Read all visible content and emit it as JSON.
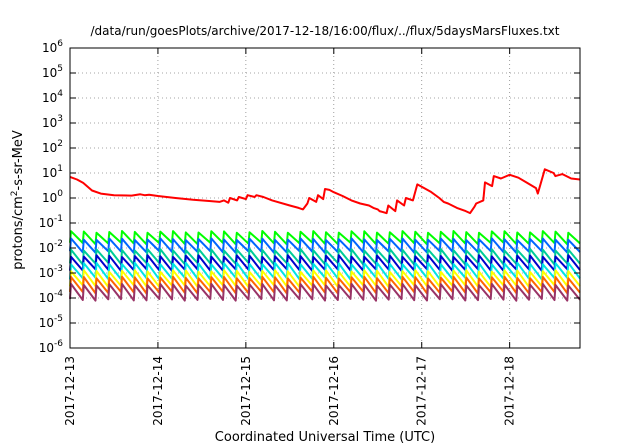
{
  "chart_data": {
    "type": "line",
    "title": "/data/run/goesPlots/archive/2017-12-18/16:00/flux/../flux/5daysMarsFluxes.txt",
    "xlabel": "Coordinated Universal Time (UTC)",
    "ylabel_base": "protons/cm",
    "ylabel_sup": "2",
    "ylabel_rest": "-s-sr-MeV",
    "y_scale": "log",
    "ylim": [
      1e-06,
      1000000.0
    ],
    "xlim": [
      0,
      5.8
    ],
    "grid": true,
    "grid_style": "dotted",
    "y_ticks": [
      {
        "base": "10",
        "exp": "-6",
        "value": -6
      },
      {
        "base": "10",
        "exp": "-5",
        "value": -5
      },
      {
        "base": "10",
        "exp": "-4",
        "value": -4
      },
      {
        "base": "10",
        "exp": "-3",
        "value": -3
      },
      {
        "base": "10",
        "exp": "-2",
        "value": -2
      },
      {
        "base": "10",
        "exp": "-1",
        "value": -1
      },
      {
        "base": "10",
        "exp": "0",
        "value": 0
      },
      {
        "base": "10",
        "exp": "1",
        "value": 1
      },
      {
        "base": "10",
        "exp": "2",
        "value": 2
      },
      {
        "base": "10",
        "exp": "3",
        "value": 3
      },
      {
        "base": "10",
        "exp": "4",
        "value": 4
      },
      {
        "base": "10",
        "exp": "5",
        "value": 5
      },
      {
        "base": "10",
        "exp": "6",
        "value": 6
      }
    ],
    "x_ticks": [
      {
        "label": "2017-12-13",
        "value": 0
      },
      {
        "label": "2017-12-14",
        "value": 1
      },
      {
        "label": "2017-12-15",
        "value": 2
      },
      {
        "label": "2017-12-16",
        "value": 3
      },
      {
        "label": "2017-12-17",
        "value": 4
      },
      {
        "label": "2017-12-18",
        "value": 5
      }
    ],
    "series": [
      {
        "color": "#ff0000",
        "x": [
          0,
          0.08,
          0.15,
          0.25,
          0.35,
          0.5,
          0.7,
          0.8,
          0.85,
          0.9,
          1.0,
          1.2,
          1.4,
          1.6,
          1.7,
          1.75,
          1.8,
          1.82,
          1.9,
          1.92,
          2.0,
          2.02,
          2.1,
          2.12,
          2.2,
          2.3,
          2.5,
          2.6,
          2.65,
          2.7,
          2.72,
          2.8,
          2.82,
          2.88,
          2.9,
          2.95,
          3.0,
          3.1,
          3.2,
          3.3,
          3.4,
          3.45,
          3.5,
          3.52,
          3.6,
          3.62,
          3.7,
          3.72,
          3.8,
          3.82,
          3.9,
          3.95,
          4.0,
          4.1,
          4.2,
          4.25,
          4.3,
          4.4,
          4.5,
          4.55,
          4.6,
          4.62,
          4.7,
          4.72,
          4.8,
          4.82,
          4.9,
          5.0,
          5.1,
          5.2,
          5.3,
          5.32,
          5.4,
          5.5,
          5.52,
          5.6,
          5.7,
          5.8
        ],
        "y": [
          7,
          5.5,
          4,
          2,
          1.5,
          1.3,
          1.25,
          1.4,
          1.3,
          1.35,
          1.2,
          1.0,
          0.85,
          0.75,
          0.7,
          0.8,
          0.65,
          1.0,
          0.8,
          1.1,
          0.9,
          1.3,
          1.1,
          1.3,
          1.1,
          0.8,
          0.5,
          0.4,
          0.35,
          0.6,
          1.0,
          0.7,
          1.3,
          0.9,
          2.3,
          2.1,
          1.7,
          1.2,
          0.8,
          0.6,
          0.5,
          0.4,
          0.35,
          0.3,
          0.25,
          0.5,
          0.3,
          0.8,
          0.5,
          1.0,
          0.8,
          3.5,
          2.8,
          1.8,
          1.0,
          0.7,
          0.6,
          0.4,
          0.3,
          0.25,
          0.45,
          0.6,
          0.8,
          4.2,
          3.0,
          7.5,
          6.0,
          8.5,
          6.5,
          4.0,
          2.5,
          1.5,
          14,
          10,
          7.5,
          9.0,
          6.0,
          5.5
        ]
      },
      {
        "color": "#00ff00",
        "base": 0.026,
        "amp": 1.7,
        "teeth": 40
      },
      {
        "color": "#0066ff",
        "base": 0.0125,
        "amp": 1.8,
        "teeth": 40
      },
      {
        "color": "#00cc99",
        "base": 0.0045,
        "amp": 1.9,
        "teeth": 40
      },
      {
        "color": "#0000cc",
        "base": 0.0025,
        "amp": 1.9,
        "teeth": 40
      },
      {
        "color": "#00e5e5",
        "base": 0.0012,
        "amp": 2.0,
        "teeth": 40
      },
      {
        "color": "#ffff00",
        "base": 0.0006,
        "amp": 2.0,
        "teeth": 40
      },
      {
        "color": "#ff6600",
        "base": 0.00033,
        "amp": 2.0,
        "teeth": 40
      },
      {
        "color": "#993366",
        "base": 0.00017,
        "amp": 2.0,
        "teeth": 40
      }
    ]
  }
}
